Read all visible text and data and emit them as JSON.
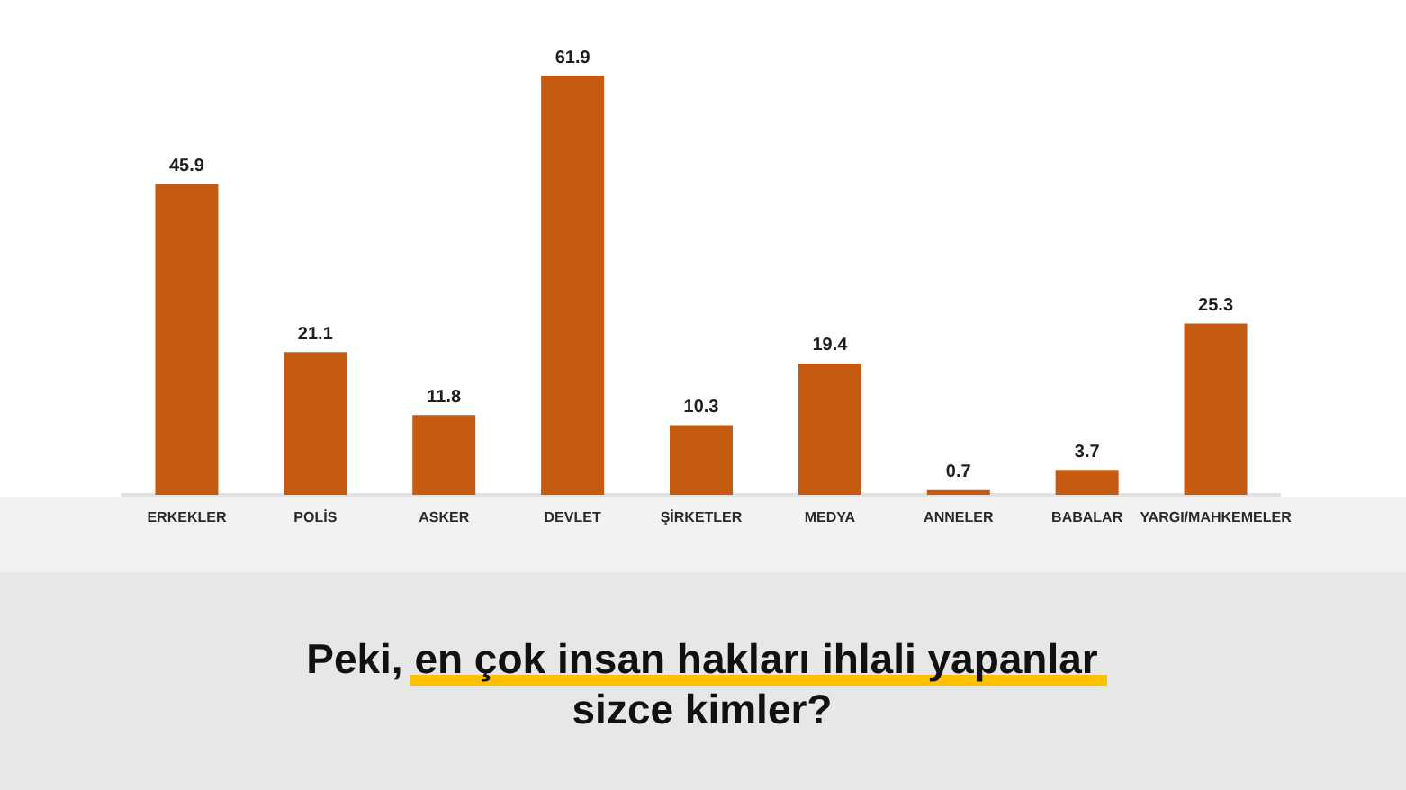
{
  "chart_data": {
    "type": "bar",
    "title": "Peki, en çok insan hakları ihlali yapanlar sizce kimler?",
    "categories": [
      "ERKEKLER",
      "POLİS",
      "ASKER",
      "DEVLET",
      "ŞİRKETLER",
      "MEDYA",
      "ANNELER",
      "BABALAR",
      "YARGI/MAHKEMELER"
    ],
    "values": [
      45.9,
      21.1,
      11.8,
      61.9,
      10.3,
      19.4,
      0.7,
      3.7,
      25.3
    ],
    "color": "#c55a11",
    "data_labels": true
  }
}
